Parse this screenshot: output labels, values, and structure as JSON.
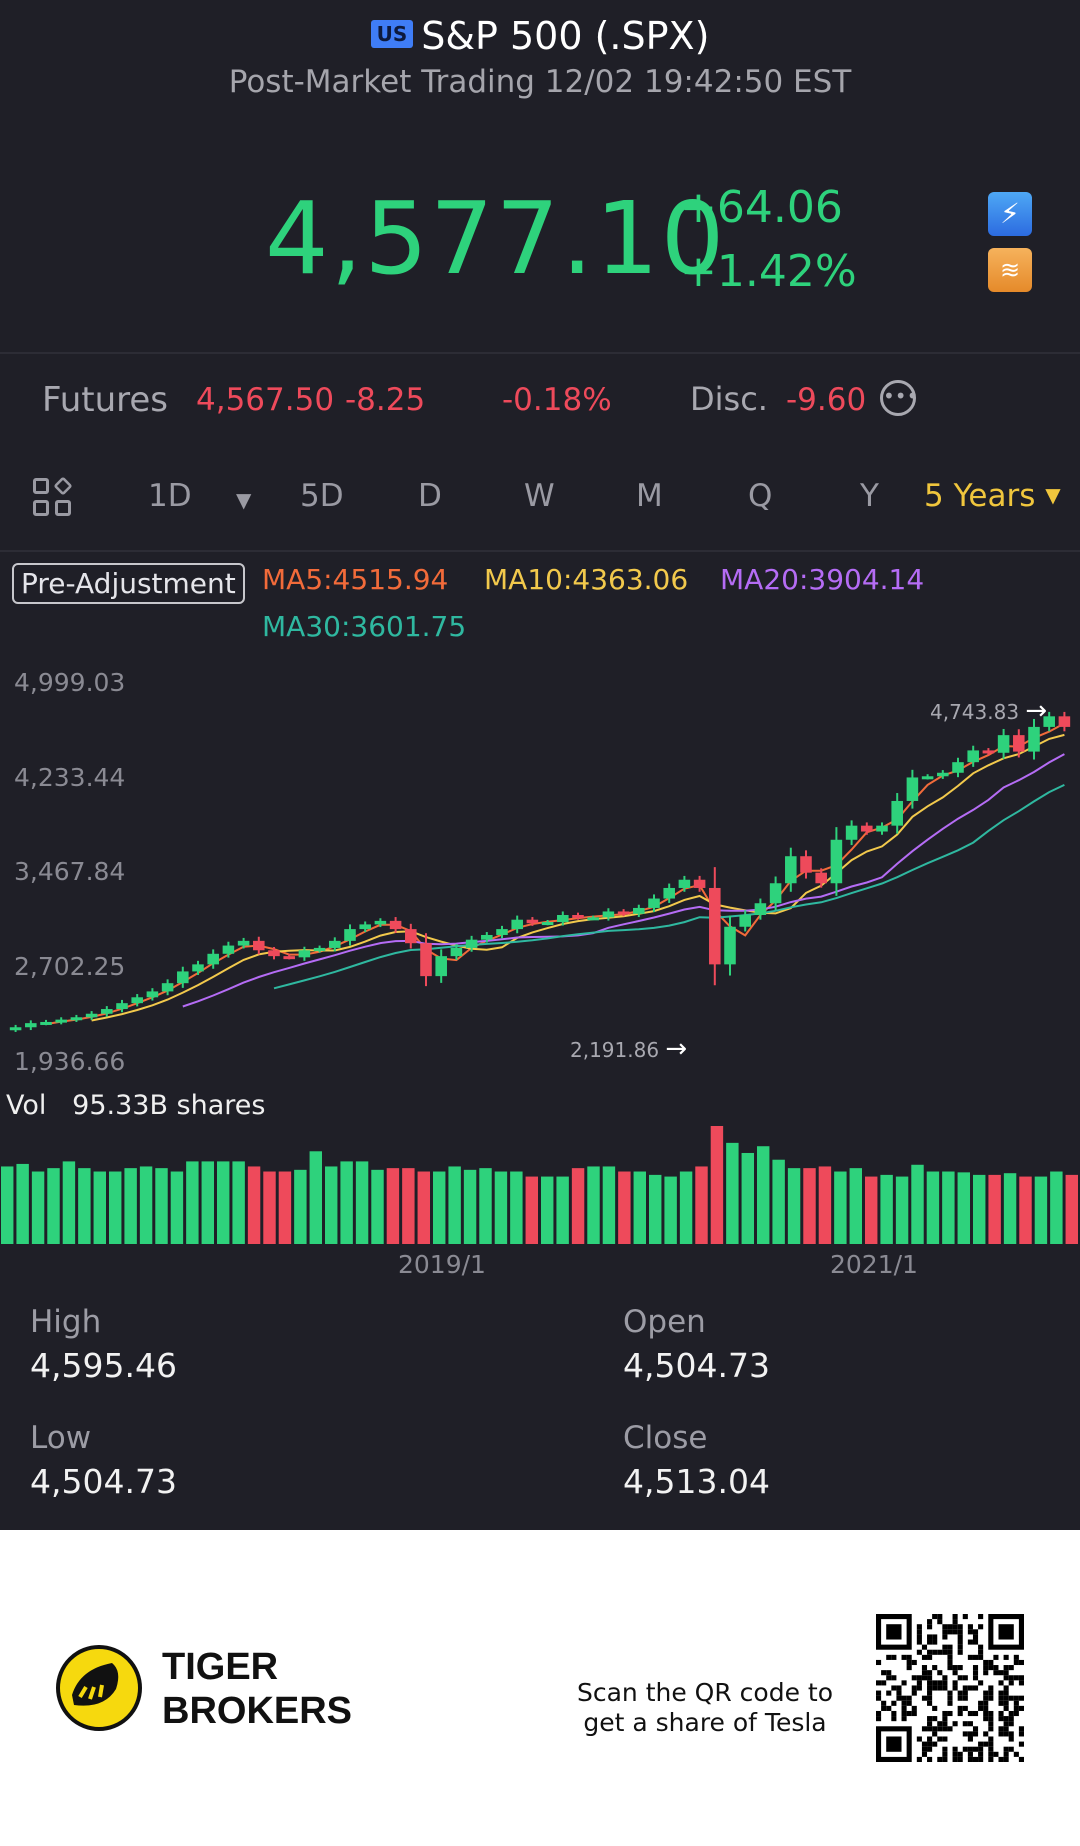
{
  "header": {
    "market_badge": "US",
    "title": "S&P 500 (.SPX)",
    "subtitle": "Post-Market Trading 12/02 19:42:50 EST"
  },
  "quote": {
    "price": "4,577.10",
    "change": "+64.06",
    "change_pct": "+1.42%",
    "icon_a": "lightning-icon",
    "icon_b": "layers-icon"
  },
  "futures": {
    "label": "Futures",
    "price": "4,567.50",
    "change": "-8.25",
    "change_pct": "-0.18%",
    "disc_label": "Disc.",
    "disc_value": "-9.60",
    "more_icon": "ellipsis-icon"
  },
  "tabs": {
    "items": [
      "1D",
      "5D",
      "D",
      "W",
      "M",
      "Q",
      "Y"
    ],
    "active": "5 Years"
  },
  "indicators": {
    "pre_adjustment": "Pre-Adjustment",
    "ma5": "MA5:4515.94",
    "ma10": "MA10:4363.06",
    "ma20": "MA20:3904.14",
    "ma30": "MA30:3601.75"
  },
  "colors": {
    "up": "#2ed27c",
    "down": "#ee4a5b",
    "ma5": "#f26b3a",
    "ma10": "#f2c94c",
    "ma20": "#b56cf5",
    "ma30": "#2fb8a0",
    "accent": "#f0c63d"
  },
  "chart_data": {
    "type": "candlestick",
    "y_ticks": [
      "4,999.03",
      "4,233.44",
      "3,467.84",
      "2,702.25",
      "1,936.66"
    ],
    "x_ticks": [
      "2019/1",
      "2021/1"
    ],
    "max_label": "4,743.83",
    "min_label": "2,191.86",
    "volume_label": "Vol",
    "volume_value": "95.33B shares",
    "ylim": [
      1936.66,
      4999.03
    ],
    "closes": [
      2045,
      2080,
      2090,
      2110,
      2130,
      2160,
      2200,
      2250,
      2300,
      2350,
      2420,
      2520,
      2580,
      2670,
      2740,
      2780,
      2700,
      2650,
      2640,
      2700,
      2720,
      2780,
      2880,
      2920,
      2950,
      2880,
      2760,
      2480,
      2650,
      2720,
      2790,
      2830,
      2880,
      2960,
      2930,
      2940,
      3000,
      2980,
      2980,
      3030,
      3010,
      3060,
      3140,
      3230,
      3300,
      3230,
      2580,
      2900,
      3000,
      3100,
      3270,
      3500,
      3360,
      3270,
      3640,
      3760,
      3710,
      3760,
      3970,
      4170,
      4180,
      4210,
      4300,
      4400,
      4380,
      4530,
      4390,
      4600,
      4690,
      4600
    ],
    "volume": [
      92,
      95,
      86,
      90,
      98,
      90,
      86,
      86,
      90,
      92,
      90,
      86,
      98,
      98,
      98,
      98,
      92,
      86,
      86,
      88,
      110,
      92,
      98,
      98,
      88,
      90,
      90,
      86,
      86,
      92,
      88,
      90,
      86,
      86,
      80,
      80,
      80,
      90,
      92,
      92,
      86,
      86,
      82,
      80,
      86,
      92,
      140,
      120,
      108,
      116,
      100,
      90,
      90,
      92,
      86,
      90,
      80,
      82,
      80,
      94,
      86,
      86,
      85,
      82,
      82,
      84,
      80,
      80,
      86,
      82
    ]
  },
  "stats": {
    "high_label": "High",
    "high": "4,595.46",
    "open_label": "Open",
    "open": "4,504.73",
    "low_label": "Low",
    "low": "4,504.73",
    "close_label": "Close",
    "close": "4,513.04"
  },
  "footer": {
    "brand_line1": "TIGER",
    "brand_line2": "BROKERS",
    "scan_line1": "Scan the QR code to",
    "scan_line2": "get a share of Tesla"
  }
}
